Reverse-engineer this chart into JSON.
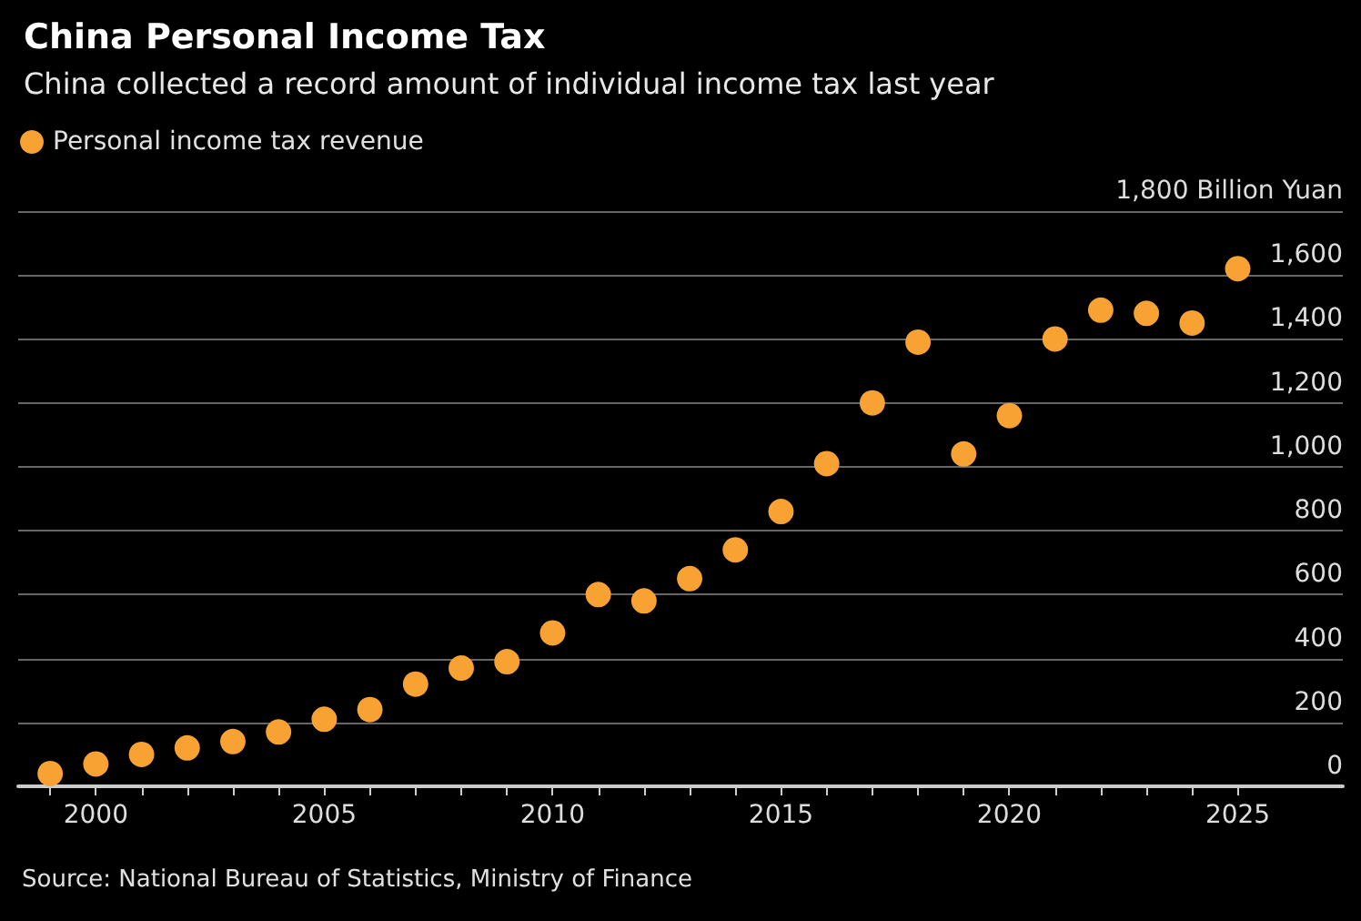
{
  "chart_data": {
    "type": "scatter",
    "title": "China Personal Income Tax",
    "subtitle": "China collected a record amount of individual income tax last year",
    "annotations": [
      "Source: National Bureau of Statistics, Ministry of Finance"
    ],
    "x": [
      1999,
      2000,
      2001,
      2002,
      2003,
      2004,
      2005,
      2006,
      2007,
      2008,
      2009,
      2010,
      2011,
      2012,
      2013,
      2014,
      2015,
      2016,
      2017,
      2018,
      2019,
      2020,
      2021,
      2022,
      2023,
      2024,
      2025
    ],
    "series": [
      {
        "name": "Personal income tax revenue",
        "color": "#f7a233",
        "values": [
          40,
          70,
          100,
          120,
          140,
          170,
          210,
          240,
          320,
          370,
          390,
          480,
          600,
          580,
          650,
          740,
          860,
          1010,
          1200,
          1390,
          1040,
          1160,
          1400,
          1490,
          1480,
          1450,
          1620
        ]
      }
    ],
    "xlim": [
      1998.3,
      2027.3
    ],
    "xticks": [
      {
        "value": 1999,
        "label": null
      },
      2000,
      {
        "value": 2001,
        "label": null
      },
      {
        "value": 2002,
        "label": null
      },
      {
        "value": 2003,
        "label": null
      },
      {
        "value": 2004,
        "label": null
      },
      2005,
      {
        "value": 2006,
        "label": null
      },
      {
        "value": 2007,
        "label": null
      },
      {
        "value": 2008,
        "label": null
      },
      {
        "value": 2009,
        "label": null
      },
      2010,
      {
        "value": 2011,
        "label": null
      },
      {
        "value": 2012,
        "label": null
      },
      {
        "value": 2013,
        "label": null
      },
      {
        "value": 2014,
        "label": null
      },
      2015,
      {
        "value": 2016,
        "label": null
      },
      {
        "value": 2017,
        "label": null
      },
      {
        "value": 2018,
        "label": null
      },
      {
        "value": 2019,
        "label": null
      },
      2020,
      {
        "value": 2021,
        "label": null
      },
      {
        "value": 2022,
        "label": null
      },
      {
        "value": 2023,
        "label": null
      },
      {
        "value": 2024,
        "label": null
      },
      2025
    ],
    "ylim": [
      0,
      1800
    ],
    "yticks": [
      0,
      200,
      400,
      600,
      800,
      {
        "value": 1000,
        "label": "1,000"
      },
      {
        "value": 1200,
        "label": "1,200"
      },
      {
        "value": 1400,
        "label": "1,400"
      },
      {
        "value": 1600,
        "label": "1,600"
      },
      {
        "value": 1800,
        "label": "1,800 Billion Yuan"
      }
    ],
    "grid": "y",
    "legend": "top left",
    "marker": "circle"
  }
}
